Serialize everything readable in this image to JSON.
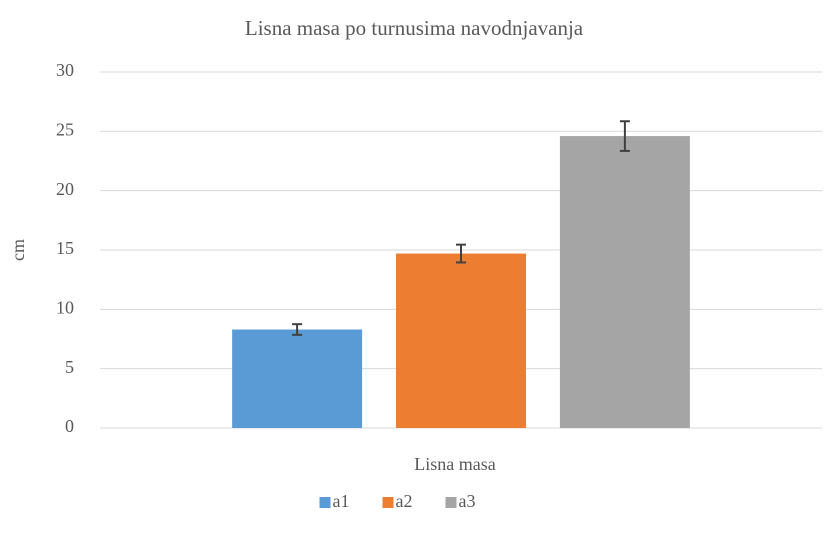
{
  "chart_data": {
    "type": "bar",
    "title": "Lisna masa po turnusima navodnjavanja",
    "categories": [
      "Lisna masa"
    ],
    "y_label": "cm",
    "series": [
      {
        "name": "a1",
        "color": "#5b9bd5",
        "values": [
          8.3
        ],
        "errors": [
          0.45
        ]
      },
      {
        "name": "a2",
        "color": "#ed7d31",
        "values": [
          14.7
        ],
        "errors": [
          0.75
        ]
      },
      {
        "name": "a3",
        "color": "#a5a5a5",
        "values": [
          24.6
        ],
        "errors": [
          1.25
        ]
      }
    ],
    "ylim": [
      0,
      30
    ],
    "yticks": [
      0,
      5,
      10,
      15,
      20,
      25,
      30
    ],
    "grid": true,
    "legend": "bottom"
  }
}
